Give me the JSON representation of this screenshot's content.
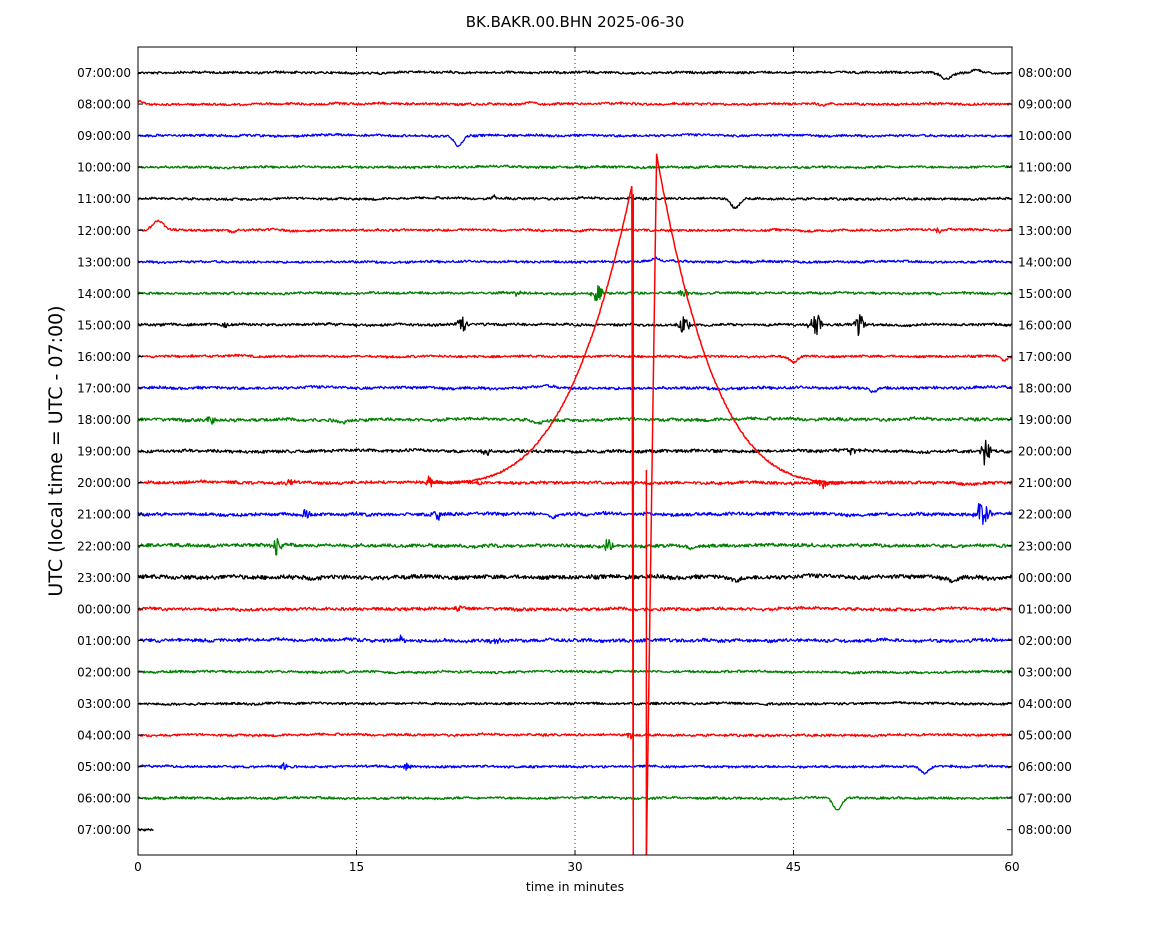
{
  "chart_data": {
    "type": "line",
    "title": "BK.BAKR.00.BHN 2025-06-30",
    "xlabel": "time in minutes",
    "ylabel": "UTC (local time = UTC - 07:00)",
    "xlim": [
      0,
      60
    ],
    "x_ticks": [
      "0",
      "15",
      "30",
      "45",
      "60"
    ],
    "x_tick_values": [
      0,
      15,
      30,
      45,
      60
    ],
    "grid": "vertical-dotted",
    "line_colors": [
      "#000000",
      "#ff0000",
      "#0000ff",
      "#008000"
    ],
    "rows": [
      {
        "left": "07:00:00",
        "right": "08:00:00",
        "color": "#000000",
        "amp": 1.0,
        "events": [
          {
            "t": 55.5,
            "a": 6,
            "w": 0.5,
            "type": "dip"
          },
          {
            "t": 57.5,
            "a": 3,
            "w": 0.4,
            "type": "bump"
          }
        ]
      },
      {
        "left": "08:00:00",
        "right": "09:00:00",
        "color": "#ff0000",
        "amp": 1.0,
        "events": [
          {
            "t": 0.2,
            "a": 3,
            "w": 0.3,
            "type": "bump"
          },
          {
            "t": 27,
            "a": 3,
            "w": 0.4,
            "type": "bump"
          },
          {
            "t": 47,
            "a": 2,
            "w": 0.3,
            "type": "dip"
          }
        ]
      },
      {
        "left": "09:00:00",
        "right": "10:00:00",
        "color": "#0000ff",
        "amp": 1.0,
        "events": [
          {
            "t": 22,
            "a": 10,
            "w": 0.4,
            "type": "dip"
          }
        ]
      },
      {
        "left": "10:00:00",
        "right": "11:00:00",
        "color": "#008000",
        "amp": 1.0,
        "events": []
      },
      {
        "left": "11:00:00",
        "right": "12:00:00",
        "color": "#000000",
        "amp": 1.0,
        "events": [
          {
            "t": 24.5,
            "a": 4,
            "w": 0.2,
            "type": "burst"
          },
          {
            "t": 41,
            "a": 9,
            "w": 0.4,
            "type": "dip"
          }
        ]
      },
      {
        "left": "12:00:00",
        "right": "13:00:00",
        "color": "#ff0000",
        "amp": 1.0,
        "events": [
          {
            "t": 1.4,
            "a": 9,
            "w": 0.5,
            "type": "bump"
          },
          {
            "t": 6.5,
            "a": 2,
            "w": 0.3,
            "type": "dip"
          },
          {
            "t": 55,
            "a": 4,
            "w": 0.2,
            "type": "burst"
          }
        ]
      },
      {
        "left": "13:00:00",
        "right": "14:00:00",
        "color": "#0000ff",
        "amp": 1.0,
        "events": [
          {
            "t": 35.5,
            "a": 3,
            "w": 0.3,
            "type": "bump"
          }
        ]
      },
      {
        "left": "14:00:00",
        "right": "15:00:00",
        "color": "#008000",
        "amp": 1.0,
        "events": [
          {
            "t": 31.5,
            "a": 9,
            "w": 0.4,
            "type": "burst"
          },
          {
            "t": 37.5,
            "a": 5,
            "w": 0.3,
            "type": "burst"
          },
          {
            "t": 26,
            "a": 4,
            "w": 0.3,
            "type": "burst"
          }
        ]
      },
      {
        "left": "15:00:00",
        "right": "16:00:00",
        "color": "#000000",
        "amp": 1.1,
        "events": [
          {
            "t": 22.2,
            "a": 9,
            "w": 0.3,
            "type": "burst"
          },
          {
            "t": 37.5,
            "a": 9,
            "w": 0.4,
            "type": "burst"
          },
          {
            "t": 46.5,
            "a": 12,
            "w": 0.4,
            "type": "burst"
          },
          {
            "t": 49.5,
            "a": 12,
            "w": 0.3,
            "type": "burst"
          },
          {
            "t": 6,
            "a": 4,
            "w": 0.3,
            "type": "burst"
          }
        ]
      },
      {
        "left": "16:00:00",
        "right": "17:00:00",
        "color": "#ff0000",
        "amp": 1.0,
        "events": [
          {
            "t": 45,
            "a": 6,
            "w": 0.4,
            "type": "dip"
          },
          {
            "t": 59.5,
            "a": 4,
            "w": 0.3,
            "type": "dip"
          }
        ]
      },
      {
        "left": "17:00:00",
        "right": "18:00:00",
        "color": "#0000ff",
        "amp": 1.2,
        "events": [
          {
            "t": 28,
            "a": 2,
            "w": 1.0,
            "type": "bump"
          },
          {
            "t": 50.5,
            "a": 4,
            "w": 0.3,
            "type": "dip"
          }
        ]
      },
      {
        "left": "18:00:00",
        "right": "19:00:00",
        "color": "#008000",
        "amp": 1.3,
        "events": [
          {
            "t": 5,
            "a": 4,
            "w": 0.3,
            "type": "burst"
          },
          {
            "t": 14,
            "a": 3,
            "w": 0.5,
            "type": "dip"
          },
          {
            "t": 27.5,
            "a": 3,
            "w": 0.5,
            "type": "dip"
          }
        ]
      },
      {
        "left": "19:00:00",
        "right": "20:00:00",
        "color": "#000000",
        "amp": 1.3,
        "events": [
          {
            "t": 24,
            "a": 4,
            "w": 0.3,
            "type": "burst"
          },
          {
            "t": 49,
            "a": 4,
            "w": 0.3,
            "type": "burst"
          },
          {
            "t": 58.2,
            "a": 14,
            "w": 0.3,
            "type": "burst"
          }
        ]
      },
      {
        "left": "20:00:00",
        "right": "21:00:00",
        "color": "#ff0000",
        "amp": 1.3,
        "events": [
          {
            "t": 20,
            "a": 6,
            "w": 0.3,
            "type": "burst"
          },
          {
            "t": 10.5,
            "a": 3,
            "w": 0.3,
            "type": "burst"
          },
          {
            "t": 47,
            "a": 5,
            "w": 0.3,
            "type": "burst"
          }
        ]
      },
      {
        "left": "21:00:00",
        "right": "22:00:00",
        "color": "#0000ff",
        "amp": 1.4,
        "events": [
          {
            "t": 11.5,
            "a": 6,
            "w": 0.3,
            "type": "burst"
          },
          {
            "t": 20.5,
            "a": 6,
            "w": 0.3,
            "type": "burst"
          },
          {
            "t": 28.5,
            "a": 3,
            "w": 0.5,
            "type": "dip"
          },
          {
            "t": 58,
            "a": 16,
            "w": 0.4,
            "type": "burst"
          }
        ]
      },
      {
        "left": "22:00:00",
        "right": "23:00:00",
        "color": "#008000",
        "amp": 1.4,
        "events": [
          {
            "t": 9.5,
            "a": 10,
            "w": 0.3,
            "type": "burst"
          },
          {
            "t": 32.3,
            "a": 8,
            "w": 0.3,
            "type": "burst"
          },
          {
            "t": 38,
            "a": 3,
            "w": 0.4,
            "type": "dip"
          }
        ]
      },
      {
        "left": "23:00:00",
        "right": "00:00:00",
        "color": "#000000",
        "amp": 1.8,
        "events": [
          {
            "t": 41,
            "a": 3,
            "w": 0.4,
            "type": "dip"
          },
          {
            "t": 56,
            "a": 3,
            "w": 0.4,
            "type": "dip"
          }
        ]
      },
      {
        "left": "00:00:00",
        "right": "01:00:00",
        "color": "#ff0000",
        "amp": 1.3,
        "events": [
          {
            "t": 22,
            "a": 3,
            "w": 0.3,
            "type": "burst"
          }
        ]
      },
      {
        "left": "01:00:00",
        "right": "02:00:00",
        "color": "#0000ff",
        "amp": 1.4,
        "events": [
          {
            "t": 18,
            "a": 4,
            "w": 0.3,
            "type": "burst"
          },
          {
            "t": 24.5,
            "a": 4,
            "w": 0.3,
            "type": "burst"
          }
        ]
      },
      {
        "left": "02:00:00",
        "right": "03:00:00",
        "color": "#008000",
        "amp": 1.0,
        "events": []
      },
      {
        "left": "03:00:00",
        "right": "04:00:00",
        "color": "#000000",
        "amp": 1.0,
        "events": []
      },
      {
        "left": "04:00:00",
        "right": "05:00:00",
        "color": "#ff0000",
        "amp": 1.0,
        "events": [
          {
            "t": 33.8,
            "a": 4,
            "w": 0.2,
            "type": "burst"
          }
        ]
      },
      {
        "left": "05:00:00",
        "right": "06:00:00",
        "color": "#0000ff",
        "amp": 1.0,
        "events": [
          {
            "t": 10,
            "a": 4,
            "w": 0.3,
            "type": "burst"
          },
          {
            "t": 18.5,
            "a": 4,
            "w": 0.3,
            "type": "burst"
          },
          {
            "t": 54,
            "a": 7,
            "w": 0.4,
            "type": "dip"
          }
        ]
      },
      {
        "left": "06:00:00",
        "right": "07:00:00",
        "color": "#008000",
        "amp": 1.0,
        "events": [
          {
            "t": 48,
            "a": 12,
            "w": 0.4,
            "type": "dip"
          }
        ]
      },
      {
        "left": "07:00:00",
        "right": "08:00:00",
        "color": "#000000",
        "amp": 1.0,
        "end_minute": 1.1,
        "events": []
      }
    ],
    "large_event": {
      "row_index": 13,
      "color": "#ff0000",
      "rise_start_minute": 20,
      "peak1_minute": 33.9,
      "peak1_rows_above": 9.4,
      "peak2_minute": 35.6,
      "peak2_rows_above": 10.4,
      "decay_end_minute": 50,
      "drop_to_bottom_minutes": [
        34.0,
        34.9
      ]
    }
  }
}
